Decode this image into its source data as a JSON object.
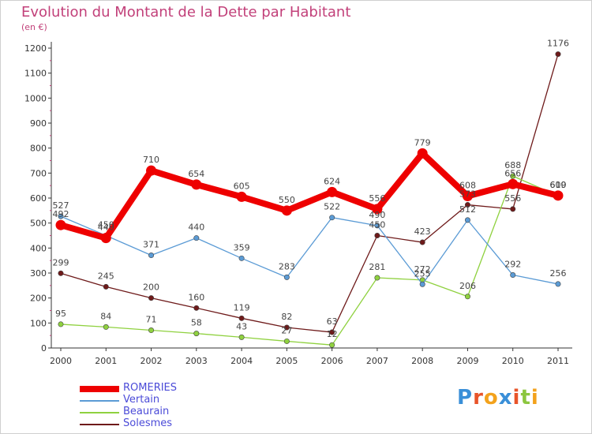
{
  "header": {
    "title": "Evolution du Montant de la Dette par Habitant",
    "subtitle": "(en €)"
  },
  "logo": {
    "text": "Proxiti",
    "colors": [
      "#3a8fd8",
      "#e8542a",
      "#f3a21c",
      "#3a8fd8",
      "#e8542a",
      "#8cc63f",
      "#f3a21c"
    ]
  },
  "chart_data": {
    "type": "line",
    "categories": [
      "2000",
      "2001",
      "2002",
      "2003",
      "2004",
      "2005",
      "2006",
      "2007",
      "2008",
      "2009",
      "2010",
      "2011"
    ],
    "ylim": [
      0,
      1200
    ],
    "yticks": [
      0,
      100,
      200,
      300,
      400,
      500,
      600,
      700,
      800,
      900,
      1000,
      1100,
      1200
    ],
    "grid": false,
    "legend_position": "bottom-left",
    "series": [
      {
        "name": "ROMERIES",
        "color": "#ee0000",
        "values": [
          492,
          440,
          710,
          654,
          605,
          550,
          624,
          556,
          779,
          608,
          656,
          610
        ],
        "labels": [
          "492",
          "440",
          "710",
          "654",
          "605",
          "550",
          "624",
          "556",
          "779",
          "608",
          "656",
          "610"
        ]
      },
      {
        "name": "Vertain",
        "color": "#5b9bd5",
        "values": [
          527,
          450,
          371,
          440,
          359,
          283,
          522,
          490,
          255,
          512,
          292,
          256
        ],
        "labels": [
          "527",
          "450",
          "371",
          "440",
          "359",
          "283",
          "522",
          "490",
          "255",
          "512",
          "292",
          "256"
        ]
      },
      {
        "name": "Beaurain",
        "color": "#8fd13f",
        "values": [
          95,
          84,
          71,
          58,
          43,
          27,
          12,
          281,
          272,
          206,
          688,
          609
        ],
        "labels": [
          "95",
          "84",
          "71",
          "58",
          "43",
          "27",
          "12",
          "281",
          "272",
          "206",
          "688",
          "609"
        ]
      },
      {
        "name": "Solesmes",
        "color": "#6e1a1a",
        "values": [
          299,
          245,
          200,
          160,
          119,
          82,
          63,
          450,
          423,
          573,
          556,
          1176
        ],
        "labels": [
          "299",
          "245",
          "200",
          "160",
          "119",
          "82",
          "63",
          "450",
          "423",
          "573",
          "556",
          "1176"
        ]
      }
    ]
  }
}
